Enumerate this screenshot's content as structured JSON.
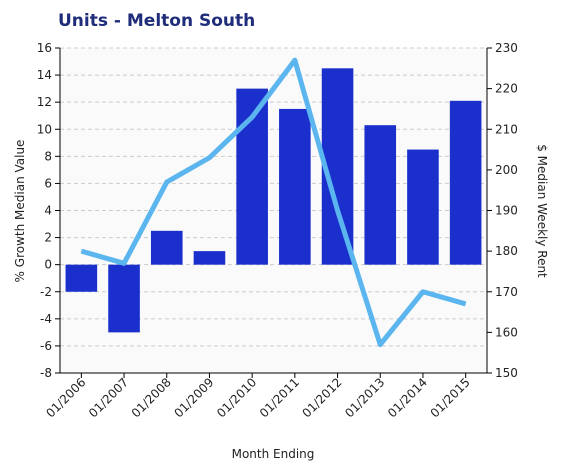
{
  "chart_data": {
    "type": "bar",
    "title": "Units - Melton South",
    "x_label": "Month Ending",
    "y_label": "% Growth Median Value",
    "y2_label": "$ Median Weekly Rent",
    "categories": [
      "01/2006",
      "01/2007",
      "01/2008",
      "01/2009",
      "01/2010",
      "01/2011",
      "01/2012",
      "01/2013",
      "01/2014",
      "01/2015"
    ],
    "series": [
      {
        "type": "bar",
        "color": "#1a2fcc",
        "values": [
          -2,
          -5,
          2.5,
          1,
          13,
          11.5,
          14.5,
          10.3,
          8.5,
          12.1
        ]
      },
      {
        "type": "line",
        "axis": "y2",
        "color": "#5bb5ee",
        "values": [
          180,
          177,
          197,
          203,
          213,
          227,
          190,
          157,
          170,
          167
        ]
      }
    ],
    "ylim": [
      -8,
      16
    ],
    "yticks": [
      -8,
      -6,
      -4,
      -2,
      0,
      2,
      4,
      6,
      8,
      10,
      12,
      14,
      16
    ],
    "y2lim": [
      150,
      230
    ],
    "y2ticks": [
      150,
      160,
      170,
      180,
      190,
      200,
      210,
      220,
      230
    ],
    "grid": true
  }
}
